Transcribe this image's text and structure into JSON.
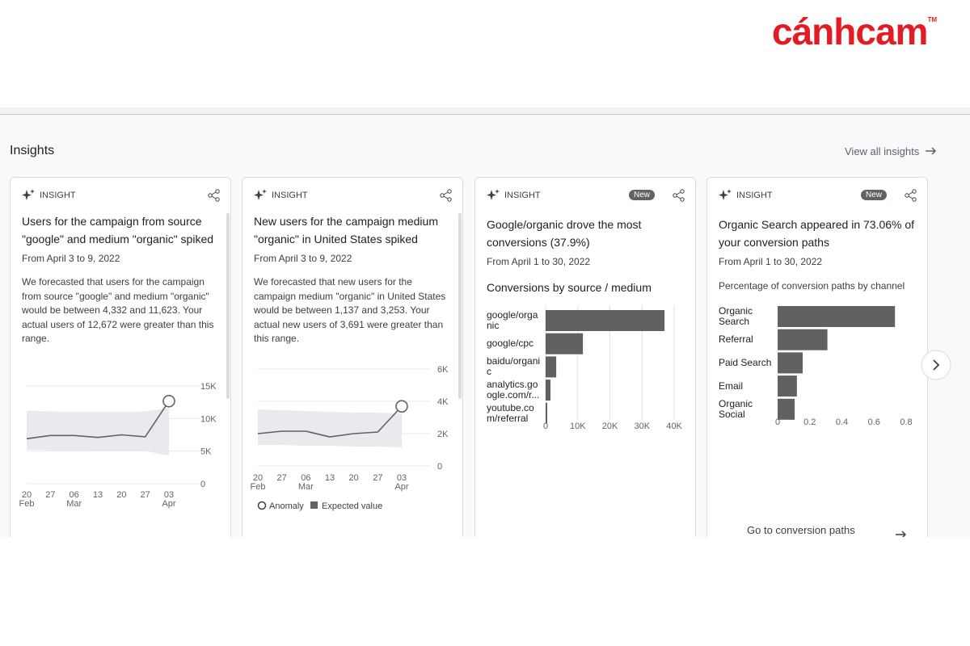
{
  "logo": {
    "text": "cánhcam",
    "mark": "TM"
  },
  "header": {
    "title": "Insights",
    "link": "View all insights"
  },
  "cards": [
    {
      "label": "INSIGHT",
      "title": "Users for the campaign from source \"google\" and medium \"organic\" spiked",
      "date": "From April 3 to 9, 2022",
      "body": "We forecasted that users for the campaign from source \"google\" and medium \"organic\" would be between 4,332 and 11,623. Your actual users of 12,672 were greater than this range.",
      "chart_data": {
        "type": "line",
        "categories": [
          "20",
          "27",
          "06",
          "13",
          "20",
          "27",
          "03"
        ],
        "category_months": [
          "Feb",
          null,
          "Mar",
          null,
          null,
          null,
          "Apr"
        ],
        "values": [
          6900,
          7400,
          7400,
          7100,
          7500,
          7200,
          12672
        ],
        "expected_low": [
          5200,
          5100,
          5100,
          5000,
          5000,
          5000,
          4332
        ],
        "expected_high": [
          11200,
          11100,
          11000,
          11000,
          11000,
          11100,
          11623
        ],
        "color": "#5f6368",
        "band_color": "#e8eaed",
        "ylim": [
          0,
          15000
        ],
        "yticks": [
          0,
          {
            "value": 5000,
            "label": "5K"
          },
          {
            "value": 10000,
            "label": "10K"
          },
          {
            "value": 15000,
            "label": "15K"
          }
        ],
        "grid": true
      }
    },
    {
      "label": "INSIGHT",
      "title": "New users for the campaign medium \"organic\" in United States spiked",
      "date": "From April 3 to 9, 2022",
      "body": "We forecasted that new users for the campaign medium \"organic\" in United States would be between 1,137 and 3,253. Your actual new users of 3,691 were greater than this range.",
      "chart_data": {
        "type": "line",
        "categories": [
          "20",
          "27",
          "06",
          "13",
          "20",
          "27",
          "03"
        ],
        "category_months": [
          "Feb",
          null,
          "Mar",
          null,
          null,
          null,
          "Apr"
        ],
        "values": [
          2000,
          2150,
          2150,
          1800,
          2000,
          2100,
          3691
        ],
        "expected_low": [
          1300,
          1300,
          1250,
          1250,
          1200,
          1200,
          1137
        ],
        "expected_high": [
          3500,
          3450,
          3400,
          3350,
          3300,
          3300,
          3253
        ],
        "color": "#5f6368",
        "band_color": "#e8eaed",
        "ylim": [
          0,
          6000
        ],
        "yticks": [
          0,
          {
            "value": 2000,
            "label": "2K"
          },
          {
            "value": 4000,
            "label": "4K"
          },
          {
            "value": 6000,
            "label": "6K"
          }
        ],
        "grid": true,
        "legend": [
          "Anomaly",
          "Expected value"
        ]
      }
    },
    {
      "label": "INSIGHT",
      "badge": "New",
      "title": "Google/organic drove the most conversions (37.9%)",
      "date": "From April 1 to 30, 2022",
      "chart_data": {
        "type": "hbar",
        "title": "Conversions by source / medium",
        "categories": [
          "google/organic",
          "google/cpc",
          "baidu/organic",
          "analytics.google.com/r...",
          "youtube.com/referral"
        ],
        "values": [
          37000,
          11600,
          3300,
          1500,
          500
        ],
        "color": "#616161",
        "xlim": [
          0,
          40000
        ],
        "xticks": [
          0,
          {
            "value": 10000,
            "label": "10K"
          },
          {
            "value": 20000,
            "label": "20K"
          },
          {
            "value": 30000,
            "label": "30K"
          },
          {
            "value": 40000,
            "label": "40K"
          }
        ],
        "grid": true
      }
    },
    {
      "label": "INSIGHT",
      "badge": "New",
      "title": "Organic Search appeared in 73.06% of your conversion paths",
      "date": "From April 1 to 30, 2022",
      "footer": "Go to conversion paths",
      "chart_data": {
        "type": "hbar",
        "title": "Percentage of conversion paths by channel",
        "categories": [
          "Organic Search",
          "Referral",
          "Paid Search",
          "Email",
          "Organic Social"
        ],
        "values": [
          0.7306,
          0.31,
          0.156,
          0.12,
          0.106
        ],
        "color": "#616161",
        "xlim": [
          0,
          0.8
        ],
        "xticks": [
          0,
          0.2,
          0.4,
          0.6,
          0.8
        ],
        "grid": false
      }
    }
  ]
}
